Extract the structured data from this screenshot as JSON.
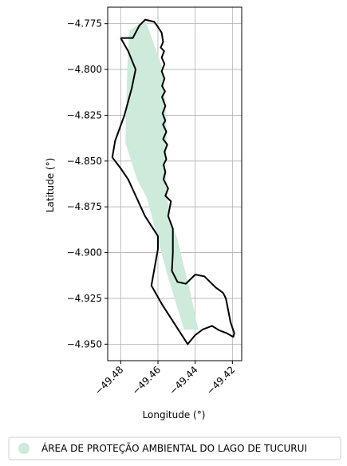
{
  "chart_data": {
    "type": "map",
    "xlabel": "Longitude (°)",
    "ylabel": "Latitude (°)",
    "xlim": [
      -49.487,
      -49.415
    ],
    "ylim": [
      -4.959,
      -4.766
    ],
    "x_ticks": [
      -49.48,
      -49.46,
      -49.44,
      -49.42
    ],
    "x_tick_labels": [
      "−49.48",
      "−49.46",
      "−49.44",
      "−49.42"
    ],
    "y_ticks": [
      -4.775,
      -4.8,
      -4.825,
      -4.85,
      -4.875,
      -4.9,
      -4.925,
      -4.95
    ],
    "y_tick_labels": [
      "−4.775",
      "−4.800",
      "−4.825",
      "−4.850",
      "−4.875",
      "−4.900",
      "−4.925",
      "−4.950"
    ],
    "grid": true,
    "legend_position": "bottom",
    "series": [
      {
        "name": "ÁREA DE PROTEÇÃO AMBIENTAL DO LAGO DE TUCURUI",
        "fill_color": "#cdeadb",
        "outline_color": "#000000",
        "area_polygon": [
          [
            -49.4755,
            -4.779
          ],
          [
            -49.4668,
            -4.7728
          ],
          [
            -49.4573,
            -4.8
          ],
          [
            -49.4552,
            -4.835
          ],
          [
            -49.4562,
            -4.852
          ],
          [
            -49.454,
            -4.88
          ],
          [
            -49.4497,
            -4.892
          ],
          [
            -49.443,
            -4.92
          ],
          [
            -49.4383,
            -4.942
          ],
          [
            -49.446,
            -4.942
          ],
          [
            -49.455,
            -4.912
          ],
          [
            -49.466,
            -4.87
          ],
          [
            -49.4712,
            -4.86
          ],
          [
            -49.4775,
            -4.84
          ],
          [
            -49.4765,
            -4.8
          ]
        ],
        "boundary": [
          [
            -49.48,
            -4.7828
          ],
          [
            -49.4735,
            -4.7828
          ],
          [
            -49.47,
            -4.776
          ],
          [
            -49.4668,
            -4.7728
          ],
          [
            -49.462,
            -4.774
          ],
          [
            -49.4605,
            -4.776
          ],
          [
            -49.458,
            -4.78
          ],
          [
            -49.4572,
            -4.785
          ],
          [
            -49.4585,
            -4.788
          ],
          [
            -49.4567,
            -4.79
          ],
          [
            -49.458,
            -4.7935
          ],
          [
            -49.4565,
            -4.797
          ],
          [
            -49.458,
            -4.801
          ],
          [
            -49.4565,
            -4.805
          ],
          [
            -49.4578,
            -4.809
          ],
          [
            -49.4562,
            -4.812
          ],
          [
            -49.4578,
            -4.815
          ],
          [
            -49.456,
            -4.82
          ],
          [
            -49.4575,
            -4.824
          ],
          [
            -49.456,
            -4.828
          ],
          [
            -49.4573,
            -4.83
          ],
          [
            -49.4555,
            -4.834
          ],
          [
            -49.4572,
            -4.838
          ],
          [
            -49.455,
            -4.841
          ],
          [
            -49.4565,
            -4.845
          ],
          [
            -49.4555,
            -4.849
          ],
          [
            -49.457,
            -4.852
          ],
          [
            -49.456,
            -4.856
          ],
          [
            -49.457,
            -4.86
          ],
          [
            -49.4545,
            -4.865
          ],
          [
            -49.456,
            -4.869
          ],
          [
            -49.453,
            -4.872
          ],
          [
            -49.4545,
            -4.88
          ],
          [
            -49.452,
            -4.887
          ],
          [
            -49.452,
            -4.9
          ],
          [
            -49.4525,
            -4.91
          ],
          [
            -49.4495,
            -4.916
          ],
          [
            -49.445,
            -4.917
          ],
          [
            -49.44,
            -4.912
          ],
          [
            -49.435,
            -4.913
          ],
          [
            -49.429,
            -4.919
          ],
          [
            -49.425,
            -4.922
          ],
          [
            -49.4235,
            -4.925
          ],
          [
            -49.421,
            -4.938
          ],
          [
            -49.419,
            -4.944
          ],
          [
            -49.4195,
            -4.946
          ],
          [
            -49.423,
            -4.944
          ],
          [
            -49.427,
            -4.9425
          ],
          [
            -49.431,
            -4.94
          ],
          [
            -49.436,
            -4.942
          ],
          [
            -49.44,
            -4.945
          ],
          [
            -49.444,
            -4.95
          ],
          [
            -49.451,
            -4.939
          ],
          [
            -49.458,
            -4.928
          ],
          [
            -49.4635,
            -4.918
          ],
          [
            -49.46,
            -4.898
          ],
          [
            -49.46,
            -4.891
          ],
          [
            -49.467,
            -4.88
          ],
          [
            -49.476,
            -4.86
          ],
          [
            -49.48,
            -4.854
          ],
          [
            -49.4845,
            -4.848
          ],
          [
            -49.483,
            -4.839
          ],
          [
            -49.478,
            -4.825
          ],
          [
            -49.474,
            -4.81
          ],
          [
            -49.472,
            -4.8
          ],
          [
            -49.476,
            -4.79
          ],
          [
            -49.48,
            -4.7828
          ]
        ]
      }
    ]
  }
}
